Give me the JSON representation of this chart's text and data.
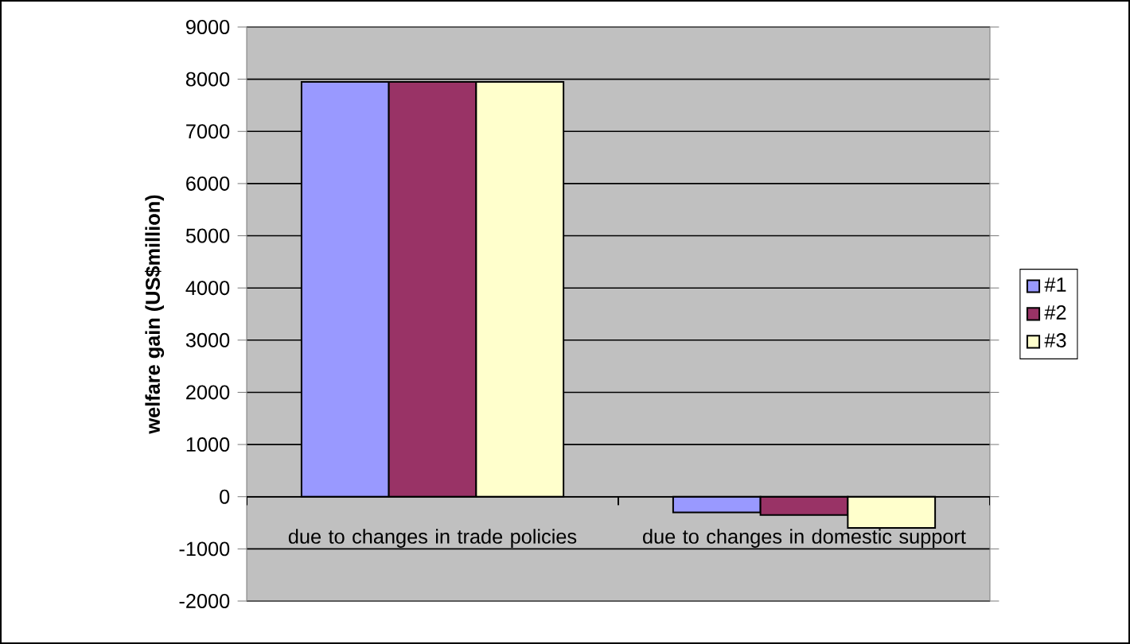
{
  "chart_data": {
    "type": "bar",
    "ylabel": "welfare gain (US$million)",
    "categories": [
      "due to changes in trade policies",
      "due to changes in domestic support"
    ],
    "series": [
      {
        "name": "#1",
        "color": "#9999ff",
        "values": [
          7950,
          -300
        ]
      },
      {
        "name": "#2",
        "color": "#993366",
        "values": [
          7950,
          -350
        ]
      },
      {
        "name": "#3",
        "color": "#ffffcc",
        "values": [
          7950,
          -600
        ]
      }
    ],
    "ylim": [
      -2000,
      9000
    ],
    "yticks": [
      -2000,
      -1000,
      0,
      1000,
      2000,
      3000,
      4000,
      5000,
      6000,
      7000,
      8000,
      9000
    ],
    "grid": "y",
    "legend": "right"
  }
}
